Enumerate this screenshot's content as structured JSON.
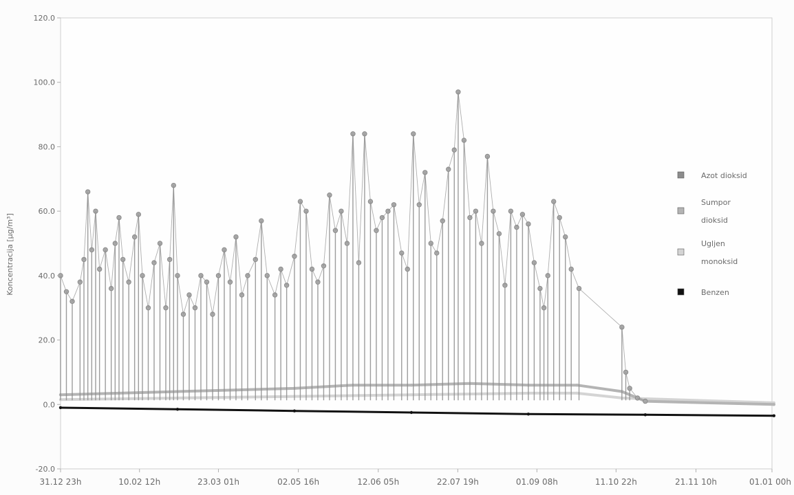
{
  "chart_data": {
    "type": "line",
    "title": "",
    "xlabel": "",
    "ylabel": "Koncentracija [µg/m³]",
    "ylim": [
      -20,
      120
    ],
    "y_ticks": [
      "-20.0",
      "0.0",
      "20.0",
      "40.0",
      "60.0",
      "80.0",
      "100.0",
      "120.0"
    ],
    "y_tick_values": [
      -20,
      0,
      20,
      40,
      60,
      80,
      100,
      120
    ],
    "x_range_days": [
      0,
      365
    ],
    "x_ticks": [
      "31.12 23h",
      "10.02 12h",
      "23.03 01h",
      "02.05 16h",
      "12.06 05h",
      "22.07 19h",
      "01.09 08h",
      "11.10 22h",
      "21.11 10h",
      "01.01 00h"
    ],
    "x_tick_days": [
      0,
      40.5,
      81,
      122,
      163,
      203.8,
      244.4,
      285,
      326,
      366
    ],
    "grid": false,
    "legend_position": "right",
    "series": [
      {
        "name": "Azot dioksid",
        "color": "#8c8c8c",
        "note_style": "spiky",
        "points": [
          [
            0,
            40
          ],
          [
            3,
            35
          ],
          [
            6,
            32
          ],
          [
            10,
            38
          ],
          [
            12,
            45
          ],
          [
            14,
            66
          ],
          [
            16,
            48
          ],
          [
            18,
            60
          ],
          [
            20,
            42
          ],
          [
            23,
            48
          ],
          [
            26,
            36
          ],
          [
            28,
            50
          ],
          [
            30,
            58
          ],
          [
            32,
            45
          ],
          [
            35,
            38
          ],
          [
            38,
            52
          ],
          [
            40,
            59
          ],
          [
            42,
            40
          ],
          [
            45,
            30
          ],
          [
            48,
            44
          ],
          [
            51,
            50
          ],
          [
            54,
            30
          ],
          [
            56,
            45
          ],
          [
            58,
            68
          ],
          [
            60,
            40
          ],
          [
            63,
            28
          ],
          [
            66,
            34
          ],
          [
            69,
            30
          ],
          [
            72,
            40
          ],
          [
            75,
            38
          ],
          [
            78,
            28
          ],
          [
            81,
            40
          ],
          [
            84,
            48
          ],
          [
            87,
            38
          ],
          [
            90,
            52
          ],
          [
            93,
            34
          ],
          [
            96,
            40
          ],
          [
            100,
            45
          ],
          [
            103,
            57
          ],
          [
            106,
            40
          ],
          [
            110,
            34
          ],
          [
            113,
            42
          ],
          [
            116,
            37
          ],
          [
            120,
            46
          ],
          [
            123,
            63
          ],
          [
            126,
            60
          ],
          [
            129,
            42
          ],
          [
            132,
            38
          ],
          [
            135,
            43
          ],
          [
            138,
            65
          ],
          [
            141,
            54
          ],
          [
            144,
            60
          ],
          [
            147,
            50
          ],
          [
            150,
            84
          ],
          [
            153,
            44
          ],
          [
            156,
            84
          ],
          [
            159,
            63
          ],
          [
            162,
            54
          ],
          [
            165,
            58
          ],
          [
            168,
            60
          ],
          [
            171,
            62
          ],
          [
            175,
            47
          ],
          [
            178,
            42
          ],
          [
            181,
            84
          ],
          [
            184,
            62
          ],
          [
            187,
            72
          ],
          [
            190,
            50
          ],
          [
            193,
            47
          ],
          [
            196,
            57
          ],
          [
            199,
            73
          ],
          [
            202,
            79
          ],
          [
            204,
            97
          ],
          [
            207,
            82
          ],
          [
            210,
            58
          ],
          [
            213,
            60
          ],
          [
            216,
            50
          ],
          [
            219,
            77
          ],
          [
            222,
            60
          ],
          [
            225,
            53
          ],
          [
            228,
            37
          ],
          [
            231,
            60
          ],
          [
            234,
            55
          ],
          [
            237,
            59
          ],
          [
            240,
            56
          ],
          [
            243,
            44
          ],
          [
            246,
            36
          ],
          [
            248,
            30
          ],
          [
            250,
            40
          ],
          [
            253,
            63
          ],
          [
            256,
            58
          ],
          [
            259,
            52
          ],
          [
            262,
            42
          ],
          [
            266,
            36
          ],
          [
            288,
            24
          ],
          [
            290,
            10
          ],
          [
            292,
            5
          ],
          [
            296,
            2
          ],
          [
            300,
            1
          ]
        ]
      },
      {
        "name": "Sumpor dioksid",
        "color": "#b4b4b4",
        "note_style": "baseline band",
        "points": [
          [
            0,
            3
          ],
          [
            30,
            3.5
          ],
          [
            60,
            4
          ],
          [
            90,
            4.5
          ],
          [
            120,
            5
          ],
          [
            150,
            6
          ],
          [
            180,
            6
          ],
          [
            210,
            6.5
          ],
          [
            240,
            6
          ],
          [
            265,
            6
          ],
          [
            288,
            4
          ],
          [
            300,
            1
          ],
          [
            366,
            0
          ]
        ]
      },
      {
        "name": "Ugljen monoksid",
        "color": "#d4d4d4",
        "note_style": "baseline band",
        "points": [
          [
            0,
            1.5
          ],
          [
            60,
            2
          ],
          [
            120,
            2.5
          ],
          [
            180,
            3
          ],
          [
            240,
            3.5
          ],
          [
            265,
            3.5
          ],
          [
            288,
            2
          ],
          [
            366,
            0.5
          ]
        ]
      },
      {
        "name": "Benzen",
        "color": "#111111",
        "note_style": "near zero",
        "points": [
          [
            0,
            -1
          ],
          [
            60,
            -1.5
          ],
          [
            120,
            -2
          ],
          [
            180,
            -2.5
          ],
          [
            240,
            -3
          ],
          [
            300,
            -3.2
          ],
          [
            366,
            -3.5
          ]
        ]
      }
    ]
  }
}
